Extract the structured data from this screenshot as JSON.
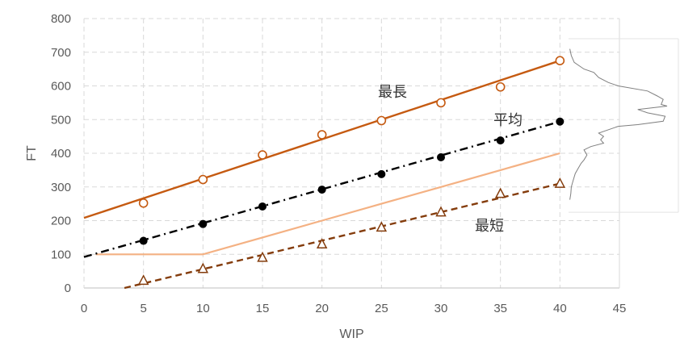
{
  "chart_data": {
    "type": "scatter",
    "xlabel": "WIP",
    "ylabel": "FT",
    "xlim": [
      0,
      45
    ],
    "ylim": [
      0,
      800
    ],
    "xticks": [
      0,
      5,
      10,
      15,
      20,
      25,
      30,
      35,
      40,
      45
    ],
    "yticks": [
      0,
      100,
      200,
      300,
      400,
      500,
      600,
      700,
      800
    ],
    "grid": true,
    "series": [
      {
        "name": "最長",
        "marker": "circle-open",
        "color": "#C55A11",
        "points": [
          [
            5,
            252
          ],
          [
            10,
            322
          ],
          [
            15,
            395
          ],
          [
            20,
            455
          ],
          [
            25,
            497
          ],
          [
            30,
            550
          ],
          [
            35,
            597
          ],
          [
            40,
            675
          ]
        ],
        "trendline": {
          "style": "solid",
          "from": [
            0,
            208
          ],
          "to": [
            40,
            675
          ]
        }
      },
      {
        "name": "平均",
        "marker": "circle-filled",
        "color": "#000000",
        "points": [
          [
            5,
            140
          ],
          [
            10,
            190
          ],
          [
            15,
            242
          ],
          [
            20,
            292
          ],
          [
            25,
            338
          ],
          [
            30,
            388
          ],
          [
            35,
            438
          ],
          [
            40,
            494
          ]
        ],
        "trendline": {
          "style": "dash-dot",
          "from": [
            0,
            92
          ],
          "to": [
            40,
            494
          ]
        }
      },
      {
        "name": "最短",
        "marker": "triangle-open",
        "color": "#843C0C",
        "points": [
          [
            5,
            22
          ],
          [
            10,
            57
          ],
          [
            15,
            90
          ],
          [
            20,
            130
          ],
          [
            25,
            180
          ],
          [
            30,
            225
          ],
          [
            35,
            280
          ],
          [
            40,
            310
          ]
        ],
        "trendline": {
          "style": "dashed",
          "from": [
            3.4,
            0
          ],
          "to": [
            40,
            310
          ]
        }
      },
      {
        "marker": "none",
        "style": "line",
        "color": "#F4B183",
        "points": [
          [
            1,
            100
          ],
          [
            10,
            100
          ],
          [
            15,
            150
          ],
          [
            20,
            200
          ],
          [
            25,
            250
          ],
          [
            30,
            300
          ],
          [
            35,
            350
          ],
          [
            40,
            400
          ]
        ]
      }
    ],
    "distribution": {
      "color": "#7F7F7F",
      "points": [
        [
          0.05,
          710
        ],
        [
          0.2,
          690
        ],
        [
          0.5,
          670
        ],
        [
          1.5,
          650
        ],
        [
          2.5,
          640
        ],
        [
          3,
          625
        ],
        [
          4,
          610
        ],
        [
          5,
          600
        ],
        [
          8,
          585
        ],
        [
          9,
          570
        ],
        [
          9.6,
          560
        ],
        [
          9.4,
          545
        ],
        [
          10,
          540
        ],
        [
          7,
          530
        ],
        [
          8,
          520
        ],
        [
          9.8,
          510
        ],
        [
          9.6,
          495
        ],
        [
          7,
          485
        ],
        [
          5,
          480
        ],
        [
          4,
          470
        ],
        [
          3,
          460
        ],
        [
          3.5,
          450
        ],
        [
          3.2,
          440
        ],
        [
          3.5,
          430
        ],
        [
          2.2,
          420
        ],
        [
          1.5,
          410
        ],
        [
          1.8,
          395
        ],
        [
          1.5,
          380
        ],
        [
          1.2,
          370
        ],
        [
          0.9,
          355
        ],
        [
          0.6,
          340
        ],
        [
          0.4,
          320
        ],
        [
          0.2,
          300
        ],
        [
          0.15,
          280
        ],
        [
          0.05,
          262
        ]
      ],
      "max_value": 10
    },
    "annotations": [
      "最長",
      "平均",
      "最短"
    ]
  }
}
